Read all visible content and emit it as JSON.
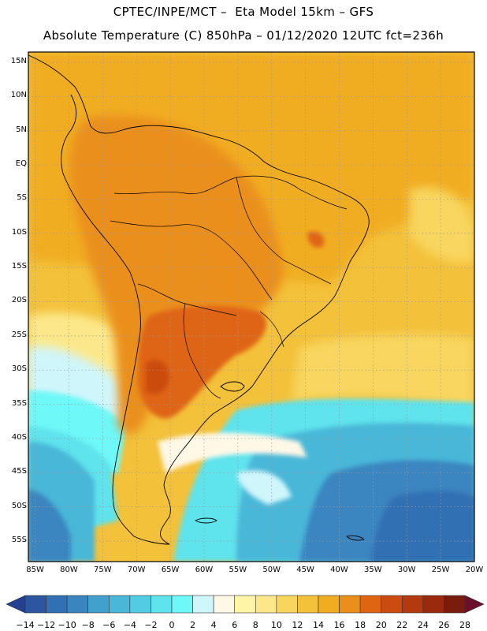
{
  "header": {
    "line1": "CPTEC/INPE/MCT –  Eta Model 15km – GFS",
    "line2": "Absolute Temperature (C) 850hPa – 01/12/2020 12UTC fct=236h"
  },
  "map": {
    "lat_labels": [
      "15N",
      "10N",
      "5N",
      "EQ",
      "5S",
      "10S",
      "15S",
      "20S",
      "25S",
      "30S",
      "35S",
      "40S",
      "45S",
      "50S",
      "55S"
    ],
    "lat_values": [
      15,
      10,
      5,
      0,
      -5,
      -10,
      -15,
      -20,
      -25,
      -30,
      -35,
      -40,
      -45,
      -50,
      -55
    ],
    "lon_labels": [
      "85W",
      "80W",
      "75W",
      "70W",
      "65W",
      "60W",
      "55W",
      "50W",
      "45W",
      "40W",
      "35W",
      "30W",
      "25W",
      "20W"
    ],
    "lon_values": [
      -85,
      -80,
      -75,
      -70,
      -65,
      -60,
      -55,
      -50,
      -45,
      -40,
      -35,
      -30,
      -25,
      -20
    ],
    "lat_range": [
      -58,
      16.5
    ],
    "lon_range": [
      -86,
      -20
    ]
  },
  "colorbar": {
    "labels": [
      "-14",
      "-12",
      "-10",
      "-8",
      "-6",
      "-4",
      "-2",
      "0",
      "2",
      "4",
      "6",
      "8",
      "10",
      "12",
      "14",
      "16",
      "18",
      "20",
      "22",
      "24",
      "26",
      "28"
    ],
    "colors": [
      "#26408f",
      "#2c56a0",
      "#3270b4",
      "#3a85c0",
      "#42a0cc",
      "#4ab7d8",
      "#52cce2",
      "#5fe3ec",
      "#6ef8f8",
      "#cff6fb",
      "#fff8e6",
      "#fdf6a6",
      "#fce88a",
      "#f8d65e",
      "#f3c13a",
      "#f1ad20",
      "#ea8f1a",
      "#df6512",
      "#cb4c10",
      "#b33a0f",
      "#9a2a0e",
      "#7a1c0d",
      "#6c0f2a"
    ]
  }
}
